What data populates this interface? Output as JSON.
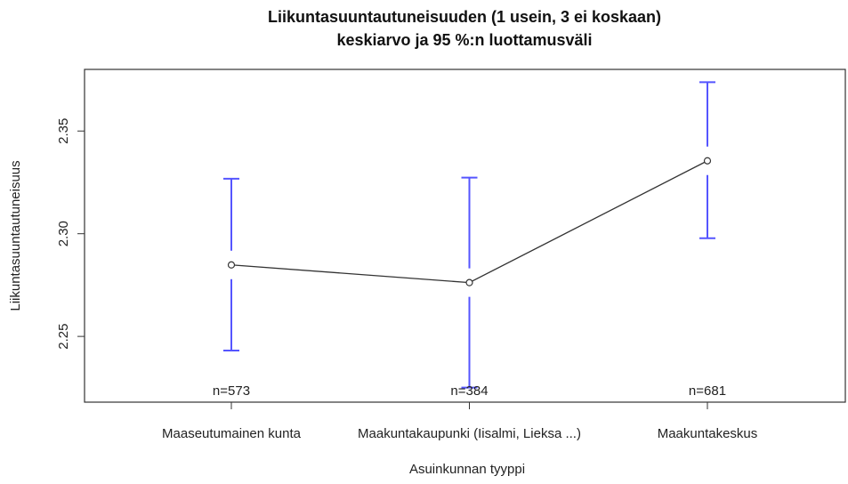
{
  "chart_data": {
    "type": "line",
    "title": [
      "Liikuntasuuntautuneisuuden (1 usein, 3 ei koskaan)",
      "keskiarvo ja 95 %:n luottamusväli"
    ],
    "x_label": "Asuinkunnan tyyppi",
    "y_label": "Liikuntasuuntautuneisuus",
    "categories": [
      "Maaseutumainen kunta",
      "Maakuntakaupunki (Iisalmi, Lieksa ...)",
      "Maakuntakeskus"
    ],
    "values": [
      2.2848,
      2.2762,
      2.3355
    ],
    "ci_upper": [
      2.3268,
      2.3273,
      2.3738
    ],
    "ci_lower": [
      2.2431,
      2.2251,
      2.2978
    ],
    "n_labels": [
      "n=573",
      "n=384",
      "n=681"
    ],
    "line_color": "#333333",
    "error_color": "#5555ff",
    "ylim": [
      2.218,
      2.38
    ],
    "yticks": [
      2.25,
      {
        "value": 2.3,
        "label": "2.30"
      },
      2.35
    ]
  }
}
